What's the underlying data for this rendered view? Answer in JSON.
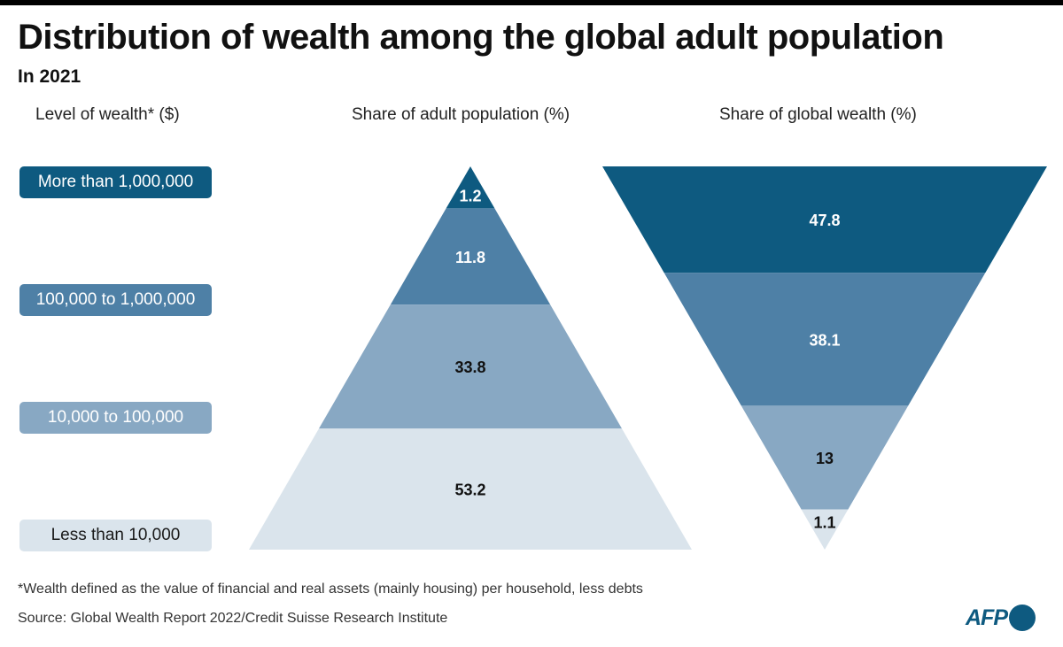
{
  "title": "Distribution of wealth among the global adult population",
  "subtitle": "In  2021",
  "headers": {
    "levels": "Level of  wealth* ($)",
    "population": "Share of adult population (%)",
    "wealth": "Share of global wealth (%)"
  },
  "footnote": "*Wealth defined as the value of  financial and real assets (mainly housing) per household, less debts",
  "source": "Source: Global Wealth Report 2022/Credit Suisse Research Institute",
  "logo": "AFP",
  "colors": {
    "tier_top": "#0e5a80",
    "tier_upper": "#4e80a6",
    "tier_middle": "#88a8c3",
    "tier_bottom": "#dae4ec"
  },
  "chart_data": {
    "type": "table",
    "categories": [
      "More than 1,000,000",
      "100,000 to 1,000,000",
      "10,000 to 100,000",
      "Less than 10,000"
    ],
    "series": [
      {
        "name": "Share of adult population (%)",
        "values": [
          "1.2",
          "11.8",
          "33.8",
          "53.2"
        ]
      },
      {
        "name": "Share of global wealth (%)",
        "values": [
          "47.8",
          "38.1",
          "13",
          "1.1"
        ]
      }
    ]
  }
}
